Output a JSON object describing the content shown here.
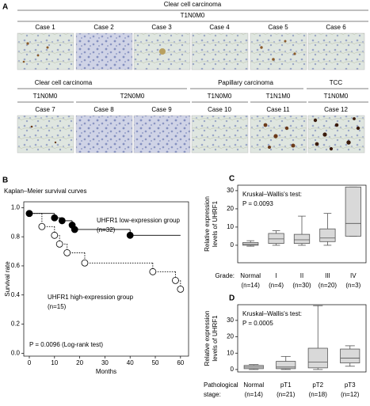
{
  "panel_a": {
    "label": "A",
    "row1": {
      "group": "Clear cell carcinoma",
      "stage": "T1N0M0",
      "cases": [
        "Case 1",
        "Case 2",
        "Case 3",
        "Case 4",
        "Case 5",
        "Case 6"
      ]
    },
    "row2": {
      "groups": [
        "Clear cell carcinoma",
        "Papillary carcinoma",
        "TCC"
      ],
      "stages": [
        "T1N0M0",
        "T2N0M0",
        "T1N0M0",
        "T1N1M0",
        "T1N0M0"
      ],
      "cases": [
        "Case 7",
        "Case 8",
        "Case 9",
        "Case 10",
        "Case 11",
        "Case 12"
      ]
    }
  },
  "chart_data": [
    {
      "type": "survival",
      "panel": "B",
      "title": "Kaplan–Meier survival curves",
      "x_label": "Months",
      "y_label": "Survival rate",
      "xlim": [
        -2.2,
        63.2
      ],
      "ylim": [
        -0.02,
        1.04
      ],
      "xticks": [
        0,
        10,
        20,
        30,
        40,
        50,
        60
      ],
      "yticks": [
        {
          "value": 0,
          "label": "0.0"
        },
        0.2,
        0.4,
        0.6,
        0.8,
        {
          "value": 1,
          "label": "1.0"
        }
      ],
      "series": [
        {
          "name": "UHFR1 low-expression group",
          "n_label": "(n=32)",
          "color": "#000000",
          "style": "solid",
          "marker": "filled",
          "x": [
            0,
            10,
            13,
            17,
            18,
            40
          ],
          "values": [
            0.96,
            0.93,
            0.91,
            0.88,
            0.85,
            0.81
          ]
        },
        {
          "name": "UHFR1 high-expression group",
          "n_label": "(n=15)",
          "color": "#000000",
          "style": "dotted",
          "marker": "open",
          "x": [
            0,
            5,
            10,
            12,
            15,
            22,
            49,
            58,
            60
          ],
          "values": [
            0.96,
            0.87,
            0.81,
            0.75,
            0.69,
            0.62,
            0.56,
            0.5,
            0.44
          ]
        }
      ],
      "annotation": "P = 0.0096 (Log-rank test)"
    },
    {
      "type": "box",
      "panel": "C",
      "test": "Kruskal–Wallis's test:",
      "p_value": "P = 0.0093",
      "y_label": [
        "Relative expression",
        "levels of UHRF1"
      ],
      "x_label": [
        "Grade:"
      ],
      "ylim": [
        -9.6,
        33
      ],
      "yticks": [
        0,
        10,
        20,
        30
      ],
      "fill": "#d9d9d9",
      "stroke": "#555555",
      "categories": [
        "Normal",
        "I",
        "II",
        "III",
        "IV"
      ],
      "n_labels": [
        "(n=14)",
        "(n=4)",
        "(n=30)",
        "(n=20)",
        "(n=3)"
      ],
      "min": [
        -0.5,
        0,
        0,
        0,
        5
      ],
      "q1": [
        0,
        1,
        1,
        2,
        5
      ],
      "median": [
        0.5,
        3.5,
        3,
        4,
        12
      ],
      "q3": [
        1.5,
        6.5,
        6,
        9,
        32
      ],
      "max": [
        2.5,
        8,
        16,
        17.5,
        32
      ]
    },
    {
      "type": "box",
      "panel": "D",
      "test": "Kruskal–Wallis's test:",
      "p_value": "P = 0.0005",
      "y_label": [
        "Relative expression",
        "levels of UHRF1"
      ],
      "x_label": [
        "Pathological",
        "stage:"
      ],
      "ylim": [
        -1.5,
        39.6
      ],
      "yticks": [
        0,
        10,
        20,
        30
      ],
      "fill": "#d9d9d9",
      "stroke": "#555555",
      "categories": [
        "Normal",
        "pT1",
        "pT2",
        "pT3"
      ],
      "n_labels": [
        "(n=14)",
        "(n=21)",
        "(n=18)",
        "(n=12)"
      ],
      "min": [
        0,
        0,
        0,
        2
      ],
      "q1": [
        0.5,
        0.5,
        1,
        4
      ],
      "median": [
        1.5,
        1.5,
        4.5,
        7
      ],
      "q3": [
        2.5,
        5,
        13,
        12.5
      ],
      "max": [
        3,
        8,
        39,
        14.5
      ]
    }
  ]
}
